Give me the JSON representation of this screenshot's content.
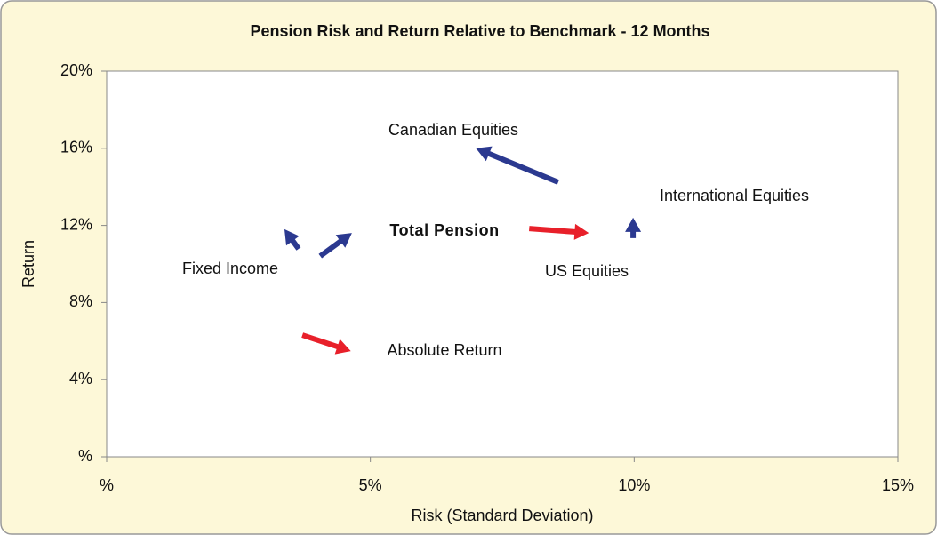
{
  "chart_data": {
    "type": "arrow",
    "title": "Pension Risk and Return Relative to Benchmark - 12 Months",
    "xlabel": "Risk (Standard Deviation)",
    "ylabel": "Return",
    "xlim": [
      0,
      15
    ],
    "ylim": [
      0,
      20
    ],
    "xticks": [
      {
        "value": 0,
        "label": "%"
      },
      {
        "value": 5,
        "label": "5%"
      },
      {
        "value": 10,
        "label": "10%"
      },
      {
        "value": 15,
        "label": "15%"
      }
    ],
    "yticks": [
      {
        "value": 0,
        "label": "%"
      },
      {
        "value": 4,
        "label": "4%"
      },
      {
        "value": 8,
        "label": "8%"
      },
      {
        "value": 12,
        "label": "12%"
      },
      {
        "value": 16,
        "label": "16%"
      },
      {
        "value": 20,
        "label": "20%"
      }
    ],
    "series": [
      {
        "name": "Canadian Equities",
        "color": "#2b3990",
        "x": [
          8.56,
          7.0
        ],
        "y": [
          14.24,
          16.0
        ]
      },
      {
        "name": "International Equities",
        "color": "#2b3990",
        "x": [
          9.98,
          9.98
        ],
        "y": [
          11.34,
          12.4
        ]
      },
      {
        "name": "Total Pension",
        "color": "#2b3990",
        "x": [
          4.05,
          4.65
        ],
        "y": [
          10.41,
          11.61
        ]
      },
      {
        "name": "Fixed Income",
        "color": "#2b3990",
        "x": [
          3.64,
          3.37
        ],
        "y": [
          10.78,
          11.8
        ]
      },
      {
        "name": "US Equities",
        "color": "#e8202a",
        "x": [
          8.01,
          9.14
        ],
        "y": [
          11.84,
          11.61
        ]
      },
      {
        "name": "Absolute Return",
        "color": "#e8202a",
        "x": [
          3.71,
          4.63
        ],
        "y": [
          6.31,
          5.48
        ]
      }
    ]
  }
}
